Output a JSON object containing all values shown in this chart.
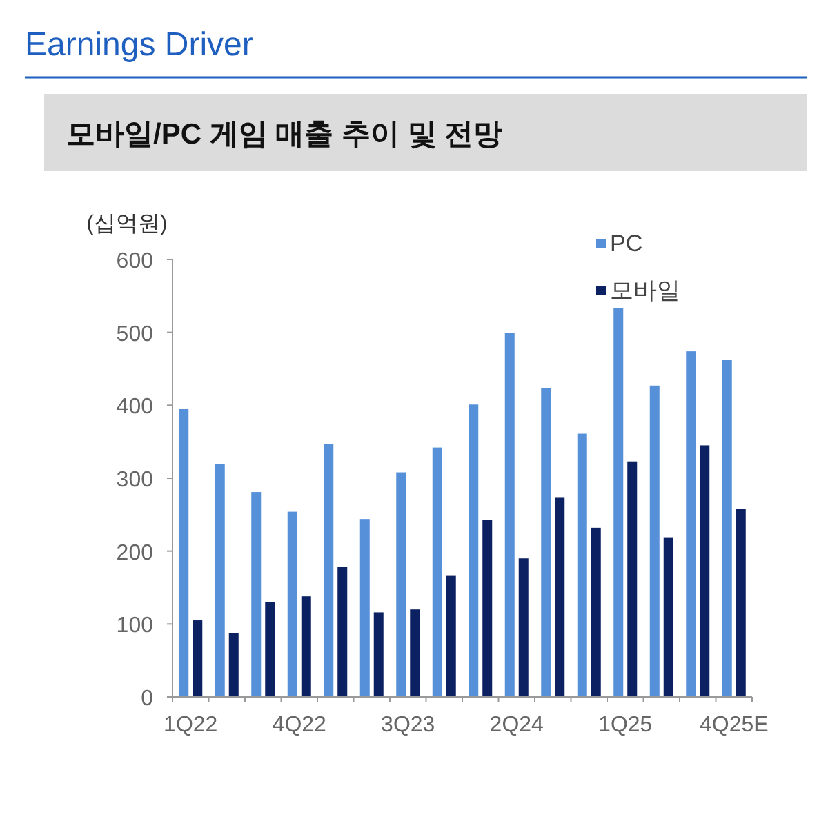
{
  "chart_data": {
    "type": "bar",
    "title": "Earnings Driver",
    "subtitle": "모바일/PC 게임 매출 추이 및 전망",
    "ylabel": "(십억원)",
    "categories": [
      "1Q22",
      null,
      null,
      "4Q22",
      null,
      null,
      "3Q23",
      null,
      null,
      "2Q24",
      null,
      null,
      "1Q25",
      null,
      null,
      "4Q25E"
    ],
    "series": [
      {
        "name": "PC",
        "color": "#5590d9",
        "values": [
          395,
          319,
          281,
          254,
          347,
          244,
          308,
          342,
          401,
          499,
          424,
          361,
          533,
          427,
          474,
          462
        ]
      },
      {
        "name": "모바일",
        "color": "#0b2161",
        "values": [
          105,
          88,
          130,
          138,
          178,
          116,
          120,
          166,
          243,
          190,
          274,
          232,
          323,
          219,
          345,
          258
        ]
      }
    ],
    "ylim": [
      0,
      600
    ],
    "yticks": [
      0,
      100,
      200,
      300,
      400,
      500,
      600
    ],
    "grid": false,
    "legend": "top right"
  }
}
